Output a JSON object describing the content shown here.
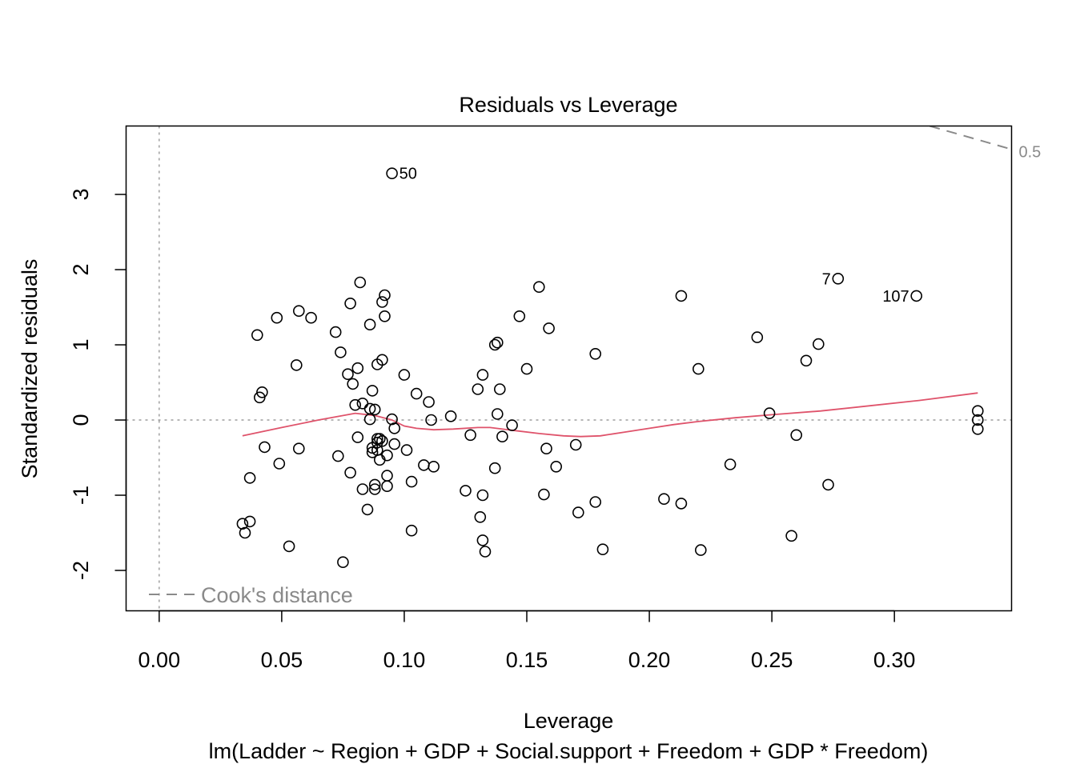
{
  "chart_data": {
    "type": "scatter",
    "title": "Residuals vs Leverage",
    "xlabel": "Leverage",
    "ylabel": "Standardized residuals",
    "subtitle": "lm(Ladder ~ Region + GDP + Social.support + Freedom + GDP * Freedom)",
    "xlim": [
      -0.0135,
      0.3478
    ],
    "ylim": [
      -2.537,
      3.91
    ],
    "x_ticks": [
      {
        "value": 0.0,
        "label": "0.00"
      },
      {
        "value": 0.05,
        "label": "0.05"
      },
      {
        "value": 0.1,
        "label": "0.10"
      },
      {
        "value": 0.15,
        "label": "0.15"
      },
      {
        "value": 0.2,
        "label": "0.20"
      },
      {
        "value": 0.25,
        "label": "0.25"
      },
      {
        "value": 0.3,
        "label": "0.30"
      }
    ],
    "y_ticks": [
      {
        "value": -2,
        "label": "-2"
      },
      {
        "value": -1,
        "label": "-1"
      },
      {
        "value": 0,
        "label": "0"
      },
      {
        "value": 1,
        "label": "1"
      },
      {
        "value": 2,
        "label": "2"
      },
      {
        "value": 3,
        "label": "3"
      }
    ],
    "reference_lines": {
      "y": 0,
      "x": 0
    },
    "legend": {
      "label": "Cook's distance",
      "placement": "bottom-left"
    },
    "cooks_contour": {
      "level_label": "0.5",
      "line": [
        [
          0.3144,
          3.91
        ],
        [
          0.3478,
          3.6
        ]
      ]
    },
    "labeled_points": [
      {
        "label": "50",
        "x": 0.095,
        "y": 3.28
      },
      {
        "label": "7",
        "x": 0.277,
        "y": 1.88
      },
      {
        "label": "107",
        "x": 0.309,
        "y": 1.65
      }
    ],
    "points": [
      [
        0.095,
        3.28
      ],
      [
        0.277,
        1.88
      ],
      [
        0.309,
        1.65
      ],
      [
        0.034,
        -1.38
      ],
      [
        0.035,
        -1.5
      ],
      [
        0.037,
        -1.35
      ],
      [
        0.037,
        -0.77
      ],
      [
        0.04,
        1.13
      ],
      [
        0.041,
        0.3
      ],
      [
        0.042,
        0.37
      ],
      [
        0.043,
        -0.36
      ],
      [
        0.048,
        1.36
      ],
      [
        0.049,
        -0.58
      ],
      [
        0.053,
        -1.68
      ],
      [
        0.056,
        0.73
      ],
      [
        0.057,
        1.45
      ],
      [
        0.057,
        -0.38
      ],
      [
        0.062,
        1.36
      ],
      [
        0.072,
        1.17
      ],
      [
        0.073,
        -0.48
      ],
      [
        0.074,
        0.9
      ],
      [
        0.075,
        -1.89
      ],
      [
        0.077,
        0.61
      ],
      [
        0.078,
        -0.7
      ],
      [
        0.078,
        1.55
      ],
      [
        0.079,
        0.48
      ],
      [
        0.08,
        0.2
      ],
      [
        0.081,
        0.69
      ],
      [
        0.081,
        -0.23
      ],
      [
        0.082,
        1.83
      ],
      [
        0.083,
        0.22
      ],
      [
        0.083,
        -0.92
      ],
      [
        0.085,
        -1.19
      ],
      [
        0.086,
        1.27
      ],
      [
        0.086,
        0.15
      ],
      [
        0.086,
        0.01
      ],
      [
        0.087,
        -0.37
      ],
      [
        0.087,
        -0.43
      ],
      [
        0.087,
        0.39
      ],
      [
        0.088,
        -0.86
      ],
      [
        0.088,
        -0.92
      ],
      [
        0.088,
        0.14
      ],
      [
        0.089,
        -0.4
      ],
      [
        0.089,
        -0.3
      ],
      [
        0.089,
        0.74
      ],
      [
        0.089,
        -0.25
      ],
      [
        0.09,
        -0.25
      ],
      [
        0.09,
        -0.53
      ],
      [
        0.091,
        -0.28
      ],
      [
        0.091,
        1.57
      ],
      [
        0.091,
        0.8
      ],
      [
        0.092,
        1.66
      ],
      [
        0.092,
        1.38
      ],
      [
        0.093,
        -0.88
      ],
      [
        0.093,
        -0.47
      ],
      [
        0.093,
        -0.74
      ],
      [
        0.095,
        0.01
      ],
      [
        0.096,
        -0.32
      ],
      [
        0.096,
        -0.11
      ],
      [
        0.1,
        0.6
      ],
      [
        0.101,
        -0.4
      ],
      [
        0.103,
        -0.82
      ],
      [
        0.103,
        -1.47
      ],
      [
        0.105,
        0.35
      ],
      [
        0.108,
        -0.6
      ],
      [
        0.11,
        0.24
      ],
      [
        0.111,
        0.0
      ],
      [
        0.112,
        -0.62
      ],
      [
        0.119,
        0.05
      ],
      [
        0.125,
        -0.94
      ],
      [
        0.127,
        -0.2
      ],
      [
        0.13,
        0.41
      ],
      [
        0.131,
        -1.29
      ],
      [
        0.132,
        -1.0
      ],
      [
        0.132,
        0.6
      ],
      [
        0.132,
        -1.6
      ],
      [
        0.133,
        -1.75
      ],
      [
        0.137,
        1.0
      ],
      [
        0.137,
        -0.64
      ],
      [
        0.138,
        1.03
      ],
      [
        0.138,
        0.08
      ],
      [
        0.139,
        0.41
      ],
      [
        0.14,
        -0.22
      ],
      [
        0.144,
        -0.07
      ],
      [
        0.147,
        1.38
      ],
      [
        0.15,
        0.68
      ],
      [
        0.155,
        1.77
      ],
      [
        0.157,
        -0.99
      ],
      [
        0.158,
        -0.38
      ],
      [
        0.159,
        1.22
      ],
      [
        0.162,
        -0.62
      ],
      [
        0.17,
        -0.33
      ],
      [
        0.171,
        -1.23
      ],
      [
        0.178,
        0.88
      ],
      [
        0.178,
        -1.09
      ],
      [
        0.181,
        -1.72
      ],
      [
        0.206,
        -1.05
      ],
      [
        0.213,
        1.65
      ],
      [
        0.213,
        -1.11
      ],
      [
        0.22,
        0.68
      ],
      [
        0.221,
        -1.73
      ],
      [
        0.233,
        -0.59
      ],
      [
        0.244,
        1.1
      ],
      [
        0.249,
        0.09
      ],
      [
        0.258,
        -1.54
      ],
      [
        0.26,
        -0.2
      ],
      [
        0.264,
        0.79
      ],
      [
        0.269,
        1.01
      ],
      [
        0.273,
        -0.86
      ],
      [
        0.334,
        0.12
      ],
      [
        0.334,
        0.0
      ],
      [
        0.334,
        -0.12
      ]
    ],
    "smooth_line": [
      [
        0.034,
        -0.21
      ],
      [
        0.05,
        -0.1
      ],
      [
        0.065,
        0.0
      ],
      [
        0.08,
        0.09
      ],
      [
        0.088,
        0.06
      ],
      [
        0.095,
        0.0
      ],
      [
        0.1,
        -0.08
      ],
      [
        0.105,
        -0.11
      ],
      [
        0.112,
        -0.13
      ],
      [
        0.12,
        -0.12
      ],
      [
        0.13,
        -0.1
      ],
      [
        0.135,
        -0.1
      ],
      [
        0.145,
        -0.14
      ],
      [
        0.155,
        -0.18
      ],
      [
        0.165,
        -0.21
      ],
      [
        0.172,
        -0.22
      ],
      [
        0.18,
        -0.21
      ],
      [
        0.19,
        -0.16
      ],
      [
        0.2,
        -0.11
      ],
      [
        0.21,
        -0.06
      ],
      [
        0.22,
        -0.02
      ],
      [
        0.235,
        0.03
      ],
      [
        0.25,
        0.07
      ],
      [
        0.27,
        0.12
      ],
      [
        0.29,
        0.19
      ],
      [
        0.31,
        0.26
      ],
      [
        0.334,
        0.36
      ]
    ],
    "colors": {
      "points": "#000000",
      "smooth": "#DF536B",
      "reference": "#9e9e9e",
      "cooks": "#8a8a8a"
    }
  }
}
